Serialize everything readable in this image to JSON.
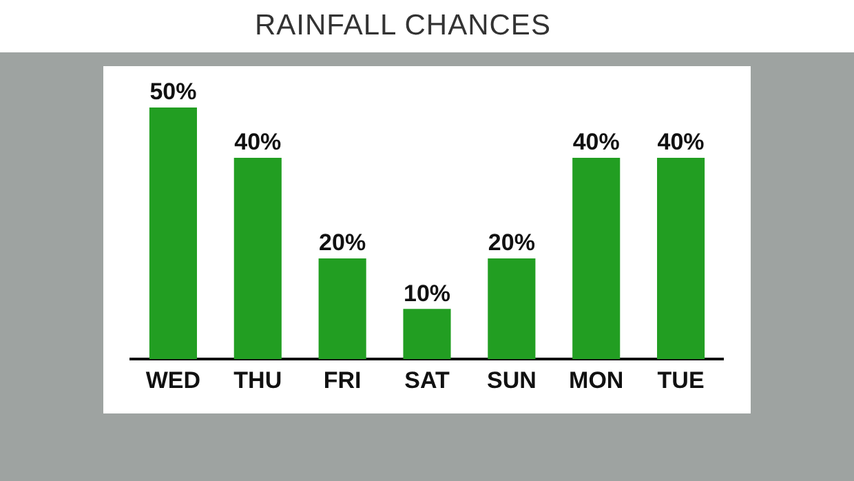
{
  "chart_data": {
    "type": "bar",
    "title": "RAINFALL CHANCES",
    "categories": [
      "WED",
      "THU",
      "FRI",
      "SAT",
      "SUN",
      "MON",
      "TUE"
    ],
    "values": [
      50,
      40,
      20,
      10,
      20,
      40,
      40
    ],
    "value_labels": [
      "50%",
      "40%",
      "20%",
      "10%",
      "20%",
      "40%",
      "40%"
    ],
    "color": "#229e22",
    "grid": false,
    "legend": false,
    "tick_labels": "x"
  }
}
